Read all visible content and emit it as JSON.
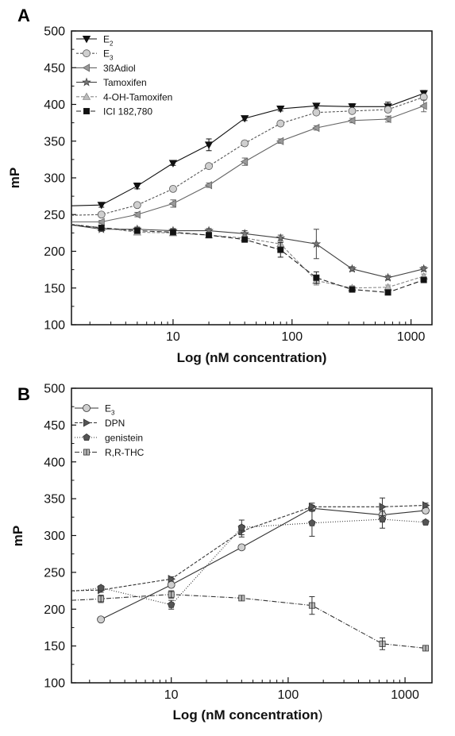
{
  "chart_data": [
    {
      "type": "line",
      "panel": "A",
      "xlabel": "Log (nM concentration)",
      "ylabel": "mP",
      "x_scale": "log",
      "xlim": [
        1.4,
        1500
      ],
      "ylim": [
        100,
        500
      ],
      "y_ticks": [
        100,
        150,
        200,
        250,
        300,
        350,
        400,
        450,
        500
      ],
      "x_ticks": [
        10,
        100,
        1000
      ],
      "x_tick_labels": [
        "10",
        "100",
        "1000"
      ],
      "legend_position": "top-left",
      "series": [
        {
          "name": "E",
          "sub": "2",
          "marker": "triangle-down",
          "color": "#111111",
          "dash": "",
          "fill": "#111111",
          "x": [
            1.4,
            2.5,
            5,
            10,
            20,
            40,
            80,
            160,
            320,
            640,
            1280
          ],
          "y": [
            262,
            263,
            289,
            320,
            345,
            381,
            394,
            398,
            397,
            397,
            415
          ],
          "err": [
            0,
            3,
            4,
            3,
            8,
            3,
            3,
            3,
            4,
            6,
            4
          ]
        },
        {
          "name": "E",
          "sub": "3",
          "marker": "circle",
          "color": "#555555",
          "dash": "3,2",
          "fill": "#cfcfcf",
          "x": [
            1.4,
            2.5,
            5,
            10,
            20,
            40,
            80,
            160,
            320,
            640,
            1280
          ],
          "y": [
            249,
            250,
            263,
            285,
            316,
            347,
            374,
            389,
            391,
            393,
            410
          ],
          "err": [
            0,
            2,
            2,
            2,
            2,
            2,
            2,
            3,
            3,
            3,
            3
          ]
        },
        {
          "name": "3ßAdiol",
          "marker": "triangle-left",
          "color": "#666666",
          "dash": "",
          "fill": "#999999",
          "x": [
            1.4,
            2.5,
            5,
            10,
            20,
            40,
            80,
            160,
            320,
            640,
            1280
          ],
          "y": [
            240,
            240,
            250,
            265,
            290,
            322,
            350,
            368,
            378,
            380,
            398
          ],
          "err": [
            0,
            2,
            3,
            5,
            3,
            5,
            3,
            3,
            3,
            4,
            8
          ]
        },
        {
          "name": "Tamoxifen",
          "marker": "star",
          "color": "#444444",
          "dash": "",
          "fill": "#777777",
          "x": [
            1.4,
            2.5,
            5,
            10,
            20,
            40,
            80,
            160,
            320,
            640,
            1280
          ],
          "y": [
            236,
            230,
            230,
            228,
            228,
            224,
            218,
            210,
            176,
            164,
            176
          ],
          "err": [
            0,
            3,
            3,
            3,
            3,
            4,
            4,
            20,
            3,
            3,
            3
          ]
        },
        {
          "name": "4-OH-Tamoxifen",
          "marker": "triangle-up",
          "color": "#888888",
          "dash": "4,2",
          "fill": "#bdbdbd",
          "x": [
            1.4,
            2.5,
            5,
            10,
            20,
            40,
            80,
            160,
            320,
            640,
            1280
          ],
          "y": [
            237,
            232,
            226,
            225,
            222,
            218,
            210,
            160,
            150,
            151,
            166
          ],
          "err": [
            0,
            3,
            3,
            3,
            3,
            3,
            4,
            6,
            3,
            3,
            3
          ]
        },
        {
          "name": "ICI 182,780",
          "marker": "square",
          "color": "#222222",
          "dash": "6,3",
          "fill": "#111111",
          "x": [
            1.4,
            2.5,
            5,
            10,
            20,
            40,
            80,
            160,
            320,
            640,
            1280
          ],
          "y": [
            236,
            232,
            228,
            226,
            222,
            216,
            202,
            164,
            148,
            144,
            161
          ],
          "err": [
            0,
            3,
            3,
            3,
            3,
            3,
            10,
            8,
            3,
            3,
            3
          ]
        }
      ]
    },
    {
      "type": "line",
      "panel": "B",
      "xlabel": "Log (nM concentration",
      "xlabel_paren": ")",
      "ylabel": "mP",
      "x_scale": "log",
      "xlim": [
        1.4,
        1700
      ],
      "ylim": [
        100,
        500
      ],
      "y_ticks": [
        100,
        150,
        200,
        250,
        300,
        350,
        400,
        450,
        500
      ],
      "x_ticks": [
        10,
        100,
        1000
      ],
      "x_tick_labels": [
        "10",
        "100",
        "1000"
      ],
      "legend_position": "top-left",
      "series": [
        {
          "name": "E",
          "sub": "3",
          "marker": "circle",
          "color": "#333333",
          "dash": "",
          "fill": "#cfcfcf",
          "x": [
            2.5,
            10,
            40,
            160,
            640,
            1500
          ],
          "y": [
            186,
            233,
            284,
            337,
            328,
            334
          ],
          "err": [
            0,
            3,
            3,
            4,
            4,
            4
          ]
        },
        {
          "name": "DPN",
          "marker": "triangle-right",
          "color": "#333333",
          "dash": "4,2",
          "fill": "#555555",
          "x": [
            1.4,
            2.5,
            10,
            40,
            160,
            640,
            1500
          ],
          "y": [
            225,
            226,
            241,
            306,
            339,
            339,
            341
          ],
          "err": [
            0,
            3,
            3,
            8,
            5,
            12,
            3
          ]
        },
        {
          "name": "genistein",
          "marker": "pentagon",
          "color": "#333333",
          "dash": "1,2",
          "fill": "#555555",
          "x": [
            1.4,
            2.5,
            10,
            40,
            160,
            640,
            1500
          ],
          "y": [
            224,
            229,
            206,
            311,
            317,
            322,
            318
          ],
          "err": [
            0,
            3,
            6,
            10,
            18,
            12,
            3
          ]
        },
        {
          "name": "R,R-THC",
          "marker": "square-open",
          "color": "#333333",
          "dash": "6,2,1,2",
          "fill": "#bbbbbb",
          "x": [
            1.4,
            2.5,
            10,
            40,
            160,
            640,
            1500
          ],
          "y": [
            212,
            214,
            220,
            215,
            205,
            153,
            147
          ],
          "err": [
            0,
            5,
            5,
            3,
            12,
            8,
            3
          ]
        }
      ]
    }
  ]
}
